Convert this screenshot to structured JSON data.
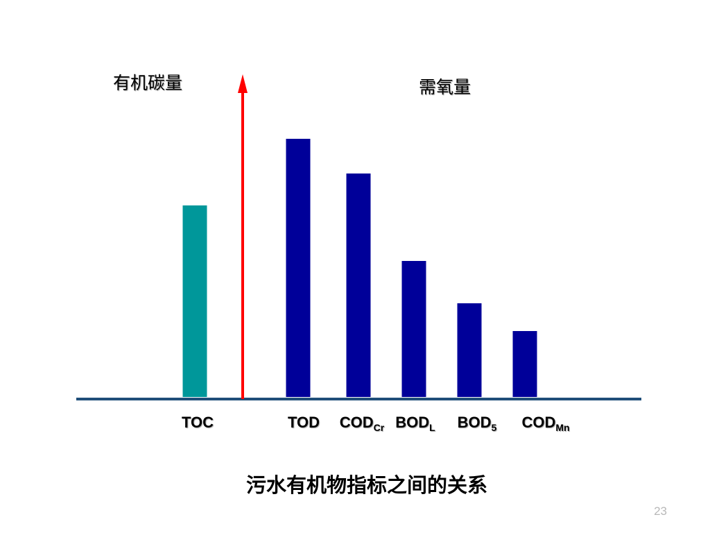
{
  "chart_data": {
    "type": "bar",
    "title": "污水有机物指标之间的关系",
    "left_axis_label": "有机碳量",
    "right_axis_label": "需氧量",
    "categories": [
      {
        "main": "TOC",
        "sub": ""
      },
      {
        "main": "TOD",
        "sub": ""
      },
      {
        "main": "COD",
        "sub": "Cr"
      },
      {
        "main": "BOD",
        "sub": "L"
      },
      {
        "main": "BOD",
        "sub": "5"
      },
      {
        "main": "COD",
        "sub": "Mn"
      }
    ],
    "values": [
      276,
      372,
      322,
      196,
      135,
      95
    ],
    "groups": [
      "organic-carbon",
      "oxygen-demand",
      "oxygen-demand",
      "oxygen-demand",
      "oxygen-demand",
      "oxygen-demand"
    ],
    "ylim": [
      0,
      420
    ],
    "grid": false,
    "legend": "none"
  },
  "colors": {
    "organic_carbon_bar": "#00979a",
    "oxygen_demand_bar": "#000099",
    "axis_arrow": "#ff0000",
    "baseline": "#1f4e79",
    "page_number": "#b8b8b8"
  },
  "page_number": "23"
}
